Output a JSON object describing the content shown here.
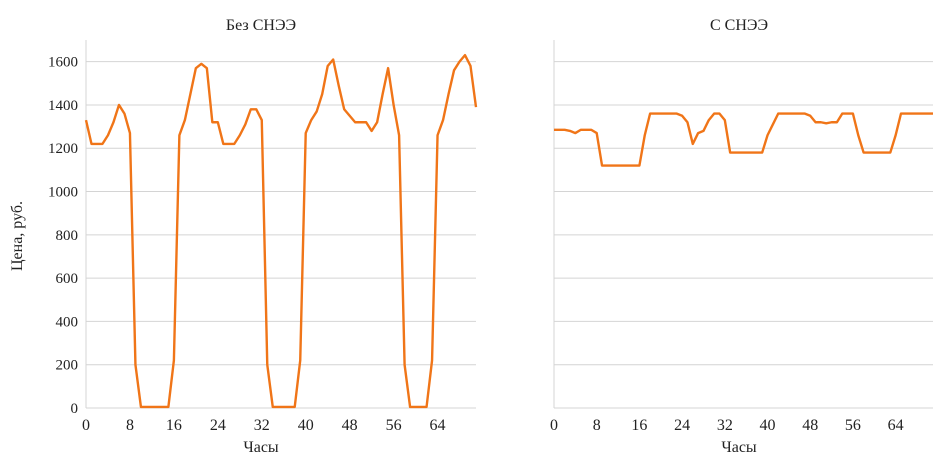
{
  "ylabel": "Цена, руб.",
  "xlabel": "Часы",
  "line_color": "#F07518",
  "grid_color": "#D4D4D4",
  "chart_data": [
    {
      "type": "line",
      "title": "Без СНЭЭ",
      "xlabel": "Часы",
      "ylabel": "Цена, руб.",
      "xlim": [
        0,
        71
      ],
      "ylim": [
        0,
        1700
      ],
      "xticks": [
        0,
        8,
        16,
        24,
        32,
        40,
        48,
        56,
        64
      ],
      "yticks": [
        0,
        200,
        400,
        600,
        800,
        1000,
        1200,
        1400,
        1600
      ],
      "grid": true,
      "x": [
        0,
        1,
        2,
        3,
        4,
        5,
        6,
        7,
        8,
        9,
        10,
        11,
        12,
        13,
        14,
        15,
        16,
        17,
        18,
        19,
        20,
        21,
        22,
        23,
        24,
        25,
        26,
        27,
        28,
        29,
        30,
        31,
        32,
        33,
        34,
        35,
        36,
        37,
        38,
        39,
        40,
        41,
        42,
        43,
        44,
        45,
        46,
        47,
        48,
        49,
        50,
        51,
        52,
        53,
        54,
        55,
        56,
        57,
        58,
        59,
        60,
        61,
        62,
        63,
        64,
        65,
        66,
        67,
        68,
        69,
        70,
        71
      ],
      "series": [
        {
          "values": [
            1330,
            1220,
            1220,
            1220,
            1260,
            1320,
            1400,
            1360,
            1270,
            200,
            5,
            5,
            5,
            5,
            5,
            5,
            220,
            1260,
            1330,
            1450,
            1570,
            1590,
            1570,
            1320,
            1320,
            1220,
            1220,
            1220,
            1260,
            1310,
            1380,
            1380,
            1330,
            200,
            5,
            5,
            5,
            5,
            5,
            220,
            1270,
            1330,
            1370,
            1450,
            1580,
            1610,
            1490,
            1380,
            1350,
            1320,
            1320,
            1320,
            1280,
            1320,
            1450,
            1570,
            1400,
            1260,
            200,
            5,
            5,
            5,
            5,
            220,
            1260,
            1330,
            1450,
            1560,
            1600,
            1630,
            1580,
            1390
          ]
        }
      ]
    },
    {
      "type": "line",
      "title": "С СНЭЭ",
      "xlabel": "Часы",
      "xlim": [
        0,
        71
      ],
      "ylim": [
        0,
        1700
      ],
      "xticks": [
        0,
        8,
        16,
        24,
        32,
        40,
        48,
        56,
        64
      ],
      "yticks": [
        0,
        200,
        400,
        600,
        800,
        1000,
        1200,
        1400,
        1600
      ],
      "grid": true,
      "x": [
        0,
        1,
        2,
        3,
        4,
        5,
        6,
        7,
        8,
        9,
        10,
        11,
        12,
        13,
        14,
        15,
        16,
        17,
        18,
        19,
        20,
        21,
        22,
        23,
        24,
        25,
        26,
        27,
        28,
        29,
        30,
        31,
        32,
        33,
        34,
        35,
        36,
        37,
        38,
        39,
        40,
        41,
        42,
        43,
        44,
        45,
        46,
        47,
        48,
        49,
        50,
        51,
        52,
        53,
        54,
        55,
        56,
        57,
        58,
        59,
        60,
        61,
        62,
        63,
        64,
        65,
        66,
        67,
        68,
        69,
        70,
        71
      ],
      "series": [
        {
          "values": [
            1285,
            1285,
            1285,
            1280,
            1270,
            1285,
            1285,
            1285,
            1270,
            1120,
            1120,
            1120,
            1120,
            1120,
            1120,
            1120,
            1120,
            1260,
            1360,
            1360,
            1360,
            1360,
            1360,
            1360,
            1350,
            1320,
            1220,
            1270,
            1280,
            1330,
            1360,
            1360,
            1330,
            1180,
            1180,
            1180,
            1180,
            1180,
            1180,
            1180,
            1260,
            1310,
            1360,
            1360,
            1360,
            1360,
            1360,
            1360,
            1350,
            1320,
            1320,
            1315,
            1320,
            1320,
            1360,
            1360,
            1360,
            1260,
            1180,
            1180,
            1180,
            1180,
            1180,
            1180,
            1260,
            1360,
            1360,
            1360,
            1360,
            1360,
            1360,
            1360
          ]
        }
      ]
    }
  ]
}
